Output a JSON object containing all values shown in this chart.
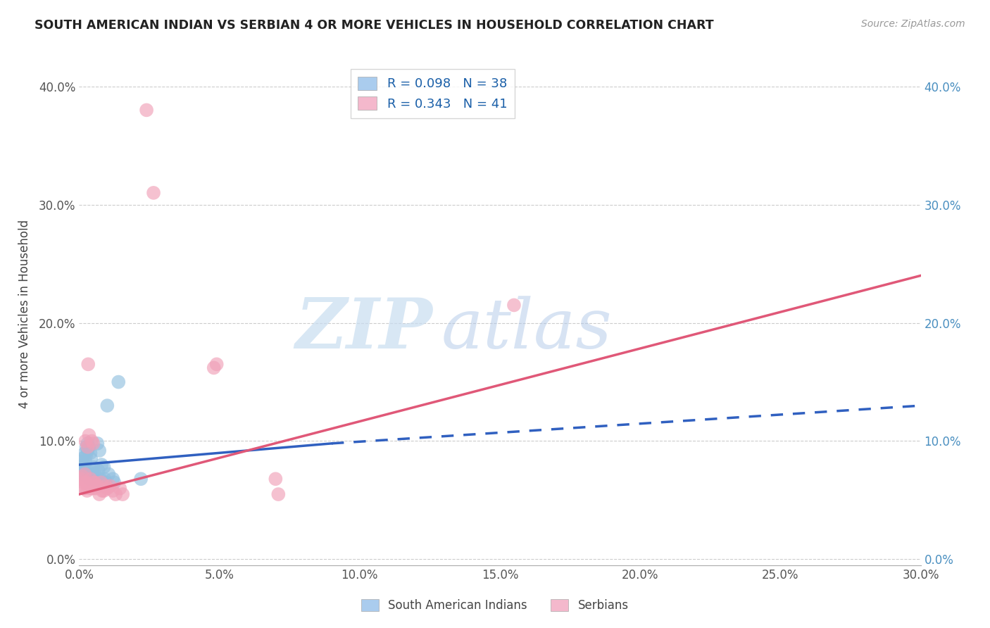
{
  "title": "SOUTH AMERICAN INDIAN VS SERBIAN 4 OR MORE VEHICLES IN HOUSEHOLD CORRELATION CHART",
  "source": "Source: ZipAtlas.com",
  "ylabel": "4 or more Vehicles in Household",
  "xlim": [
    0.0,
    0.3
  ],
  "ylim": [
    -0.005,
    0.42
  ],
  "xticks": [
    0.0,
    0.05,
    0.1,
    0.15,
    0.2,
    0.25,
    0.3
  ],
  "yticks": [
    0.0,
    0.1,
    0.2,
    0.3,
    0.4
  ],
  "blue_color": "#92c0e0",
  "pink_color": "#f0a0b8",
  "blue_line_color": "#3060c0",
  "pink_line_color": "#e05878",
  "blue_scatter": [
    [
      0.0005,
      0.083
    ],
    [
      0.0008,
      0.075
    ],
    [
      0.001,
      0.085
    ],
    [
      0.0012,
      0.078
    ],
    [
      0.0015,
      0.072
    ],
    [
      0.0018,
      0.08
    ],
    [
      0.002,
      0.09
    ],
    [
      0.0022,
      0.083
    ],
    [
      0.0025,
      0.095
    ],
    [
      0.0025,
      0.088
    ],
    [
      0.0028,
      0.075
    ],
    [
      0.003,
      0.098
    ],
    [
      0.003,
      0.092
    ],
    [
      0.0035,
      0.095
    ],
    [
      0.0038,
      0.068
    ],
    [
      0.004,
      0.09
    ],
    [
      0.0042,
      0.085
    ],
    [
      0.0045,
      0.075
    ],
    [
      0.0045,
      0.068
    ],
    [
      0.0048,
      0.072
    ],
    [
      0.005,
      0.078
    ],
    [
      0.0055,
      0.072
    ],
    [
      0.006,
      0.068
    ],
    [
      0.0065,
      0.098
    ],
    [
      0.0068,
      0.075
    ],
    [
      0.0072,
      0.092
    ],
    [
      0.0075,
      0.068
    ],
    [
      0.008,
      0.08
    ],
    [
      0.0082,
      0.065
    ],
    [
      0.0088,
      0.078
    ],
    [
      0.009,
      0.068
    ],
    [
      0.0095,
      0.065
    ],
    [
      0.01,
      0.13
    ],
    [
      0.0105,
      0.072
    ],
    [
      0.012,
      0.068
    ],
    [
      0.0125,
      0.065
    ],
    [
      0.014,
      0.15
    ],
    [
      0.022,
      0.068
    ]
  ],
  "pink_scatter": [
    [
      0.0005,
      0.068
    ],
    [
      0.0008,
      0.062
    ],
    [
      0.0012,
      0.07
    ],
    [
      0.0015,
      0.065
    ],
    [
      0.0018,
      0.06
    ],
    [
      0.002,
      0.072
    ],
    [
      0.0022,
      0.1
    ],
    [
      0.0025,
      0.065
    ],
    [
      0.0028,
      0.058
    ],
    [
      0.003,
      0.095
    ],
    [
      0.0032,
      0.165
    ],
    [
      0.0035,
      0.105
    ],
    [
      0.0038,
      0.06
    ],
    [
      0.004,
      0.068
    ],
    [
      0.0042,
      0.062
    ],
    [
      0.0045,
      0.1
    ],
    [
      0.0048,
      0.06
    ],
    [
      0.005,
      0.098
    ],
    [
      0.0052,
      0.065
    ],
    [
      0.0055,
      0.065
    ],
    [
      0.0058,
      0.06
    ],
    [
      0.0062,
      0.062
    ],
    [
      0.0068,
      0.062
    ],
    [
      0.0072,
      0.055
    ],
    [
      0.0078,
      0.065
    ],
    [
      0.0082,
      0.058
    ],
    [
      0.0088,
      0.058
    ],
    [
      0.0095,
      0.062
    ],
    [
      0.01,
      0.06
    ],
    [
      0.011,
      0.062
    ],
    [
      0.012,
      0.058
    ],
    [
      0.013,
      0.055
    ],
    [
      0.0145,
      0.06
    ],
    [
      0.0155,
      0.055
    ],
    [
      0.024,
      0.38
    ],
    [
      0.0265,
      0.31
    ],
    [
      0.048,
      0.162
    ],
    [
      0.049,
      0.165
    ],
    [
      0.07,
      0.068
    ],
    [
      0.071,
      0.055
    ],
    [
      0.155,
      0.215
    ]
  ],
  "blue_line_solid": {
    "x0": 0.0,
    "y0": 0.08,
    "x1": 0.09,
    "y1": 0.098
  },
  "blue_line_dashed": {
    "x0": 0.09,
    "y0": 0.098,
    "x1": 0.3,
    "y1": 0.13
  },
  "pink_line": {
    "x0": 0.0,
    "y0": 0.055,
    "x1": 0.3,
    "y1": 0.24
  },
  "watermark_zip": "ZIP",
  "watermark_atlas": "atlas",
  "background_color": "#ffffff",
  "grid_color": "#cccccc",
  "legend_blue_label": "R = 0.098   N = 38",
  "legend_pink_label": "R = 0.343   N = 41",
  "legend_blue_patch": "#aaccee",
  "legend_pink_patch": "#f4b8cc",
  "bottom_legend_blue": "South American Indians",
  "bottom_legend_pink": "Serbians"
}
